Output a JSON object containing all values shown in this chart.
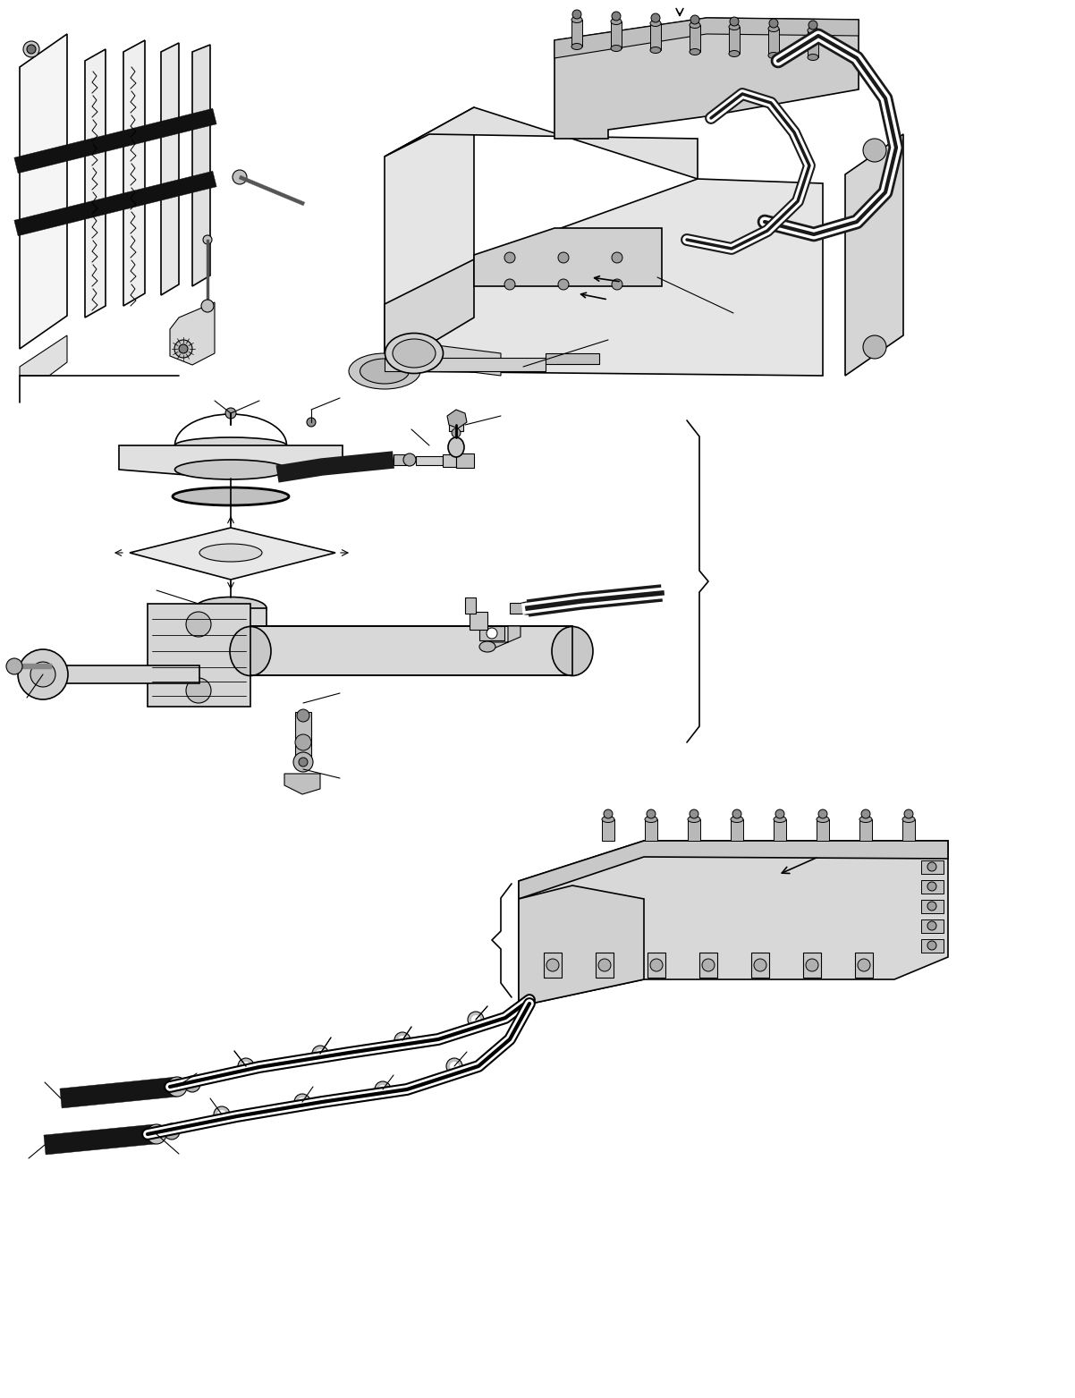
{
  "background_color": "#ffffff",
  "line_color": "#000000",
  "fig_width": 12.02,
  "fig_height": 15.63,
  "dpi": 100,
  "lw": 0.8,
  "lw2": 1.2,
  "lw3": 2.0,
  "gray_light": "#e8e8e8",
  "gray_mid": "#c8c8c8",
  "gray_dark": "#909090",
  "black_dark": "#1a1a1a"
}
